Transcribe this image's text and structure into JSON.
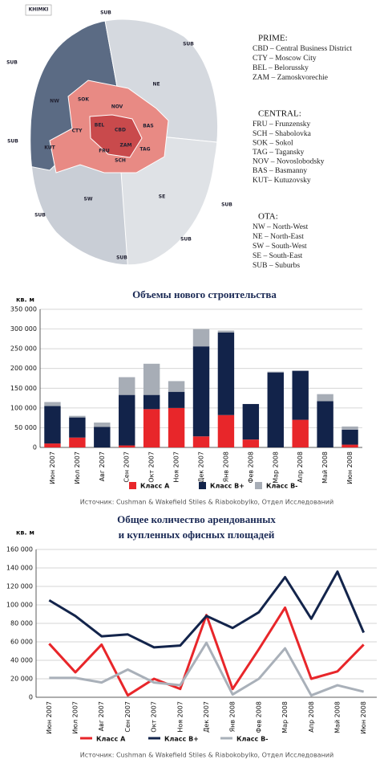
{
  "map": {
    "labels": [
      "KHIMKI",
      "SUB",
      "SUB",
      "SUB",
      "NE",
      "NW",
      "SOK",
      "NOV",
      "BEL",
      "CBD",
      "BAS",
      "CTY",
      "KUT",
      "FRU",
      "ZAM",
      "TAG",
      "SCH",
      "SUB",
      "SW",
      "SE",
      "SUB",
      "SUB",
      "SUB",
      "SUB"
    ]
  },
  "legend": {
    "groups": [
      {
        "title": "PRIME:",
        "items": [
          "CBD – Central Business District",
          "CTY – Moscow City",
          "BEL – Belorussky",
          "ZAM – Zamoskvorechie"
        ]
      },
      {
        "title": "CENTRAL:",
        "items": [
          "FRU – Frunzensky",
          "SCH – Shabolovka",
          "SOK – Sokol",
          "TAG – Taganskу",
          "NOV – Novoslobodsky",
          "BAS – Basmanny",
          "KUT– Kutuzovsky"
        ]
      },
      {
        "title": "OTA:",
        "items": [
          "NW – North-West",
          "NE – North-East",
          "SW – South-West",
          "SE – South-East",
          "SUB – Suburbs"
        ]
      }
    ]
  },
  "chart_data": [
    {
      "type": "stacked_bar",
      "title": "Объемы нового строительства",
      "y_label": "кв. м",
      "categories": [
        "Июн 2007",
        "Июл 2007",
        "Авг 2007",
        "Сен 2007",
        "Окт 2007",
        "Ноя 2007",
        "Дек 2007",
        "Янв 2008",
        "Фев 2008",
        "Мар 2008",
        "Апр 2008",
        "Май 2008",
        "Июн 2008"
      ],
      "series": [
        {
          "name": "Класс А",
          "color": "#e8262a",
          "values": [
            10000,
            25000,
            0,
            5000,
            97000,
            100000,
            28000,
            82000,
            20000,
            0,
            70000,
            0,
            7000
          ]
        },
        {
          "name": "Класс B+",
          "color": "#12234a",
          "values": [
            95000,
            51000,
            52000,
            128000,
            36000,
            41000,
            228000,
            209000,
            90000,
            190000,
            124000,
            117000,
            38000
          ]
        },
        {
          "name": "Класс B-",
          "color": "#a7adb6",
          "values": [
            10000,
            4000,
            11000,
            45000,
            79000,
            27000,
            44000,
            5000,
            0,
            2000,
            1000,
            18000,
            8000
          ]
        }
      ],
      "ylim": [
        0,
        350000
      ],
      "yticks": [
        0,
        {
          "value": 50000,
          "label": "50 000"
        },
        {
          "value": 100000,
          "label": "100 000"
        },
        {
          "value": 150000,
          "label": "150 000"
        },
        {
          "value": 200000,
          "label": "200 000"
        },
        {
          "value": 250000,
          "label": "250 000"
        },
        {
          "value": 300000,
          "label": "300 000"
        },
        {
          "value": 350000,
          "label": "350 000"
        }
      ],
      "grid": true,
      "source": "Источник: Cushman & Wakefield Stiles & Riabokobylko, Отдел Исследований"
    },
    {
      "type": "line",
      "title": [
        "Общее количество арендованных",
        "и купленных офисных площадей"
      ],
      "y_label": "кв. м",
      "categories": [
        "Июн 2007",
        "Июл 2007",
        "Авг 2007",
        "Сен 2007",
        "Окт 2007",
        "Ноя 2007",
        "Дек 2007",
        "Янв 2008",
        "Фев 2008",
        "Мар 2008",
        "Апр 2008",
        "Май 2008",
        "Июн 2008"
      ],
      "series": [
        {
          "name": "Класс А",
          "color": "#e8262a",
          "values": [
            58000,
            27000,
            57000,
            2000,
            20000,
            9000,
            89000,
            9000,
            52000,
            97000,
            20000,
            28000,
            57000
          ]
        },
        {
          "name": "Класс B+",
          "color": "#13244b",
          "values": [
            105000,
            88000,
            66000,
            68000,
            54000,
            56000,
            88000,
            75000,
            92000,
            130000,
            85000,
            136000,
            70000
          ]
        },
        {
          "name": "Класс B-",
          "color": "#a9b0b9",
          "values": [
            21000,
            21000,
            16000,
            30000,
            16000,
            13000,
            59000,
            3000,
            20000,
            53000,
            2000,
            13000,
            6000
          ]
        }
      ],
      "ylim": [
        0,
        160000
      ],
      "yticks": [
        0,
        {
          "value": 20000,
          "label": "20 000"
        },
        {
          "value": 40000,
          "label": "40 000"
        },
        {
          "value": 60000,
          "label": "60 000"
        },
        {
          "value": 80000,
          "label": "80 000"
        },
        {
          "value": 100000,
          "label": "100 000"
        },
        {
          "value": 120000,
          "label": "120 000"
        },
        {
          "value": 140000,
          "label": "140 000"
        },
        {
          "value": 160000,
          "label": "160 000"
        }
      ],
      "grid": true,
      "source": "Источник: Cushman & Wakefield Stiles & Riabokobylko, Отдел Исследований"
    }
  ]
}
